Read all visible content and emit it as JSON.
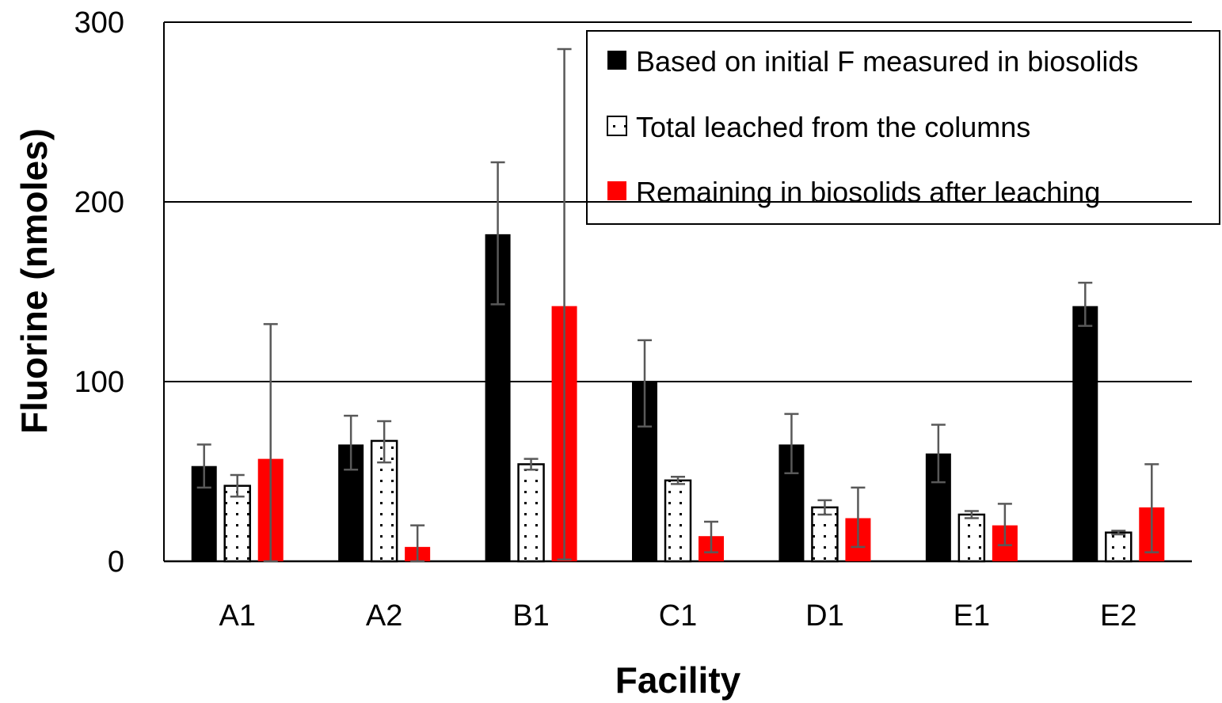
{
  "chart_data": {
    "type": "bar",
    "title": "",
    "xlabel": "Facility",
    "ylabel": "Fluorine (nmoles)",
    "ylim": [
      0,
      300
    ],
    "yticks": [
      0,
      100,
      200,
      300
    ],
    "gridlines": true,
    "legend_position": "top-right",
    "categories": [
      "A1",
      "A2",
      "B1",
      "C1",
      "D1",
      "E1",
      "E2"
    ],
    "series": [
      {
        "name": "Based on initial F measured in biosolids",
        "color": "#000000",
        "pattern": "solid",
        "values": [
          53,
          65,
          182,
          100,
          65,
          60,
          142
        ],
        "error_low": [
          41,
          51,
          143,
          75,
          49,
          44,
          131
        ],
        "error_high": [
          65,
          81,
          222,
          123,
          82,
          76,
          155
        ]
      },
      {
        "name": "Total leached from the columns",
        "color": "#ffffff",
        "pattern": "dotted",
        "values": [
          42,
          67,
          54,
          45,
          30,
          26,
          16
        ],
        "error_low": [
          36,
          55,
          51,
          43,
          26,
          24,
          15
        ],
        "error_high": [
          48,
          78,
          57,
          47,
          34,
          28,
          17
        ]
      },
      {
        "name": "Remaining in biosolids after leaching",
        "color": "#ff0000",
        "pattern": "solid",
        "values": [
          57,
          8,
          142,
          14,
          24,
          20,
          30
        ],
        "error_low": [
          0,
          0,
          1,
          5,
          8,
          9,
          5
        ],
        "error_high": [
          132,
          20,
          285,
          22,
          41,
          32,
          54
        ]
      }
    ]
  }
}
